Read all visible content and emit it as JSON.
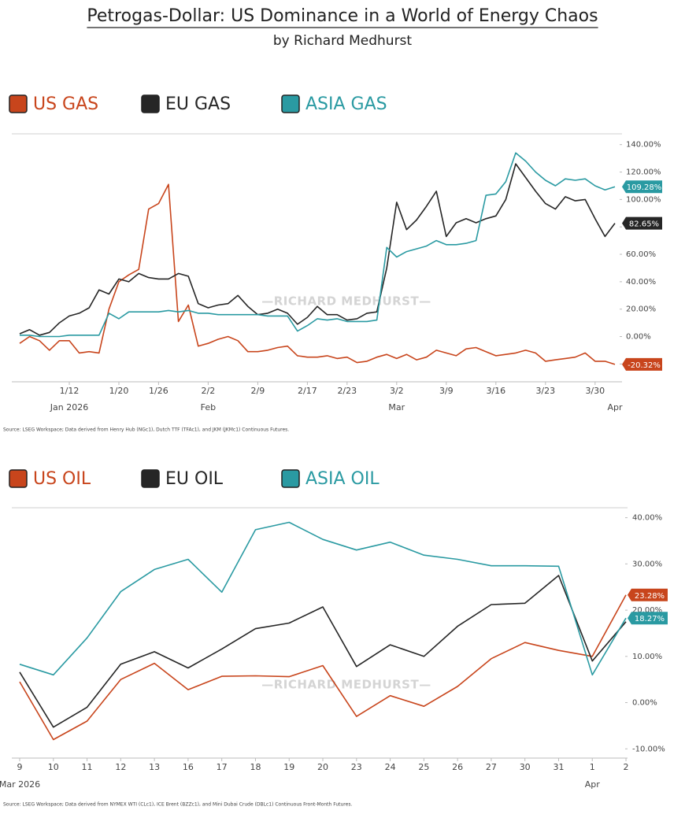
{
  "title": "Petrogas-Dollar: US Dominance in a World of Energy Chaos",
  "subtitle": "by Richard Medhurst",
  "chart_data": [
    {
      "type": "line",
      "categories": [
        null,
        null,
        null,
        null,
        null,
        "1/12",
        null,
        null,
        null,
        null,
        "1/20",
        null,
        null,
        null,
        "1/26",
        null,
        null,
        null,
        null,
        "2/2",
        null,
        null,
        null,
        null,
        "2/9",
        null,
        null,
        null,
        null,
        "2/17",
        null,
        null,
        null,
        "2/23",
        null,
        null,
        null,
        null,
        "3/2",
        null,
        null,
        null,
        null,
        "3/9",
        null,
        null,
        null,
        null,
        "3/16",
        null,
        null,
        null,
        null,
        "3/23",
        null,
        null,
        null,
        null,
        "3/30",
        null,
        null
      ],
      "categories2": [
        null,
        null,
        null,
        null,
        null,
        "Jan 2026",
        null,
        null,
        null,
        null,
        null,
        null,
        null,
        null,
        null,
        null,
        null,
        null,
        null,
        "Feb",
        null,
        null,
        null,
        null,
        null,
        null,
        null,
        null,
        null,
        null,
        null,
        null,
        null,
        null,
        null,
        null,
        null,
        null,
        "Mar",
        null,
        null,
        null,
        null,
        null,
        null,
        null,
        null,
        null,
        null,
        null,
        null,
        null,
        null,
        null,
        null,
        null,
        null,
        null,
        null,
        null,
        "Apr"
      ],
      "series": [
        {
          "name": "US GAS",
          "color": "#c8451c",
          "end_label": "-20.32%",
          "values": [
            -5,
            0,
            -3,
            -10,
            -3,
            -3,
            -12,
            -11,
            -12,
            20,
            40,
            45,
            49,
            93,
            97,
            111,
            11,
            23,
            -7,
            -5,
            -2,
            0,
            -3,
            -11,
            -11,
            -10,
            -8,
            -7,
            -14,
            -15,
            -15,
            -14,
            -16,
            -15,
            -19,
            -18,
            -15,
            -13,
            -16,
            -13,
            -17,
            -15,
            -10,
            -12,
            -14,
            -9,
            -8,
            -11,
            -14,
            -13,
            -12,
            -10,
            -12,
            -18,
            -17,
            -16,
            -15,
            -12,
            -18,
            -18,
            -20.32
          ]
        },
        {
          "name": "EU GAS",
          "color": "#262626",
          "end_label": "82.65%",
          "values": [
            2,
            5,
            1,
            3,
            10,
            15,
            17,
            21,
            34,
            31,
            42,
            40,
            46,
            43,
            42,
            42,
            46,
            44,
            24,
            21,
            23,
            24,
            30,
            22,
            16,
            17,
            20,
            17,
            9,
            14,
            22,
            16,
            16,
            12,
            13,
            17,
            18,
            50,
            98,
            78,
            85,
            95,
            106,
            73,
            83,
            86,
            83,
            86,
            88,
            100,
            126,
            116,
            106,
            97,
            93,
            102,
            99,
            100,
            86,
            73,
            82.65
          ]
        },
        {
          "name": "ASIA GAS",
          "color": "#2a9aa2",
          "end_label": "109.28%",
          "values": [
            1,
            1,
            0,
            0,
            0,
            1,
            1,
            1,
            1,
            17,
            13,
            18,
            18,
            18,
            18,
            19,
            18,
            19,
            17,
            17,
            16,
            16,
            16,
            16,
            16,
            15,
            15,
            15,
            4,
            8,
            13,
            12,
            13,
            11,
            11,
            11,
            12,
            65,
            58,
            62,
            64,
            66,
            70,
            67,
            67,
            68,
            70,
            103,
            104,
            113,
            134,
            128,
            120,
            114,
            110,
            115,
            114,
            115,
            110,
            107,
            109.28
          ]
        }
      ],
      "ylim": [
        -33,
        145
      ],
      "yticks": [
        {
          "value": 140,
          "label": "140.00%"
        },
        {
          "value": 120,
          "label": "120.00%"
        },
        {
          "value": 100,
          "label": "100.00%"
        },
        {
          "value": 80,
          "label": "80.00%"
        },
        {
          "value": 60,
          "label": "60.00%"
        },
        {
          "value": 40,
          "label": "40.00%"
        },
        {
          "value": 20,
          "label": "20.00%"
        },
        {
          "value": 0,
          "label": "0.00%"
        },
        {
          "value": -20,
          "label": "-20.00%"
        }
      ],
      "watermark": "—RICHARD MEDHURST—",
      "source": "Source: LSEG Workspace; Data derived from Henry Hub (NGc1), Dutch TTF (TFAc1), and JKM (JKMc1) Continuous Futures."
    },
    {
      "type": "line",
      "categories": [
        "9",
        "10",
        "11",
        "12",
        "13",
        "16",
        "17",
        "18",
        "19",
        "20",
        "23",
        "24",
        "25",
        "26",
        "27",
        "30",
        "31",
        "1",
        "2"
      ],
      "categories2": [
        "Mar 2026",
        null,
        null,
        null,
        null,
        null,
        null,
        null,
        null,
        null,
        null,
        null,
        null,
        null,
        null,
        null,
        null,
        "Apr",
        null
      ],
      "series": [
        {
          "name": "US OIL",
          "color": "#c8451c",
          "end_label": "23.28%",
          "values": [
            4.5,
            -8,
            -4,
            5,
            8.5,
            2.8,
            5.7,
            5.8,
            5.6,
            8,
            -3,
            1.5,
            -0.8,
            3.5,
            9.5,
            13,
            11.3,
            10,
            23.28
          ]
        },
        {
          "name": "EU OIL",
          "color": "#262626",
          "values": [
            6.6,
            -5.3,
            -1,
            8.3,
            11,
            7.5,
            11.6,
            16,
            17.2,
            20.7,
            7.8,
            12.5,
            10,
            16.5,
            21.2,
            21.5,
            27.5,
            9,
            17.5
          ]
        },
        {
          "name": "ASIA OIL",
          "color": "#2a9aa2",
          "end_label": "18.27%",
          "values": [
            8.3,
            6,
            14,
            24,
            28.8,
            31,
            23.9,
            37.4,
            39,
            35.3,
            33,
            34.7,
            31.9,
            31,
            29.6,
            29.6,
            29.5,
            6,
            18.27
          ]
        }
      ],
      "ylim": [
        -12,
        43
      ],
      "yticks": [
        {
          "value": 40,
          "label": "40.00%"
        },
        {
          "value": 30,
          "label": "30.00%"
        },
        {
          "value": 20,
          "label": "20.00%"
        },
        {
          "value": 10,
          "label": "10.00%"
        },
        {
          "value": 0,
          "label": "0.00%"
        },
        {
          "value": -10,
          "label": "-10.00%"
        }
      ],
      "watermark": "—RICHARD MEDHURST—",
      "source": "Source: LSEG Workspace; Data derived from NYMEX WTI (CLc1), ICE Brent (BZZc1), and Mini Dubai Crude (DBLc1) Continuous Front-Month Futures."
    }
  ]
}
